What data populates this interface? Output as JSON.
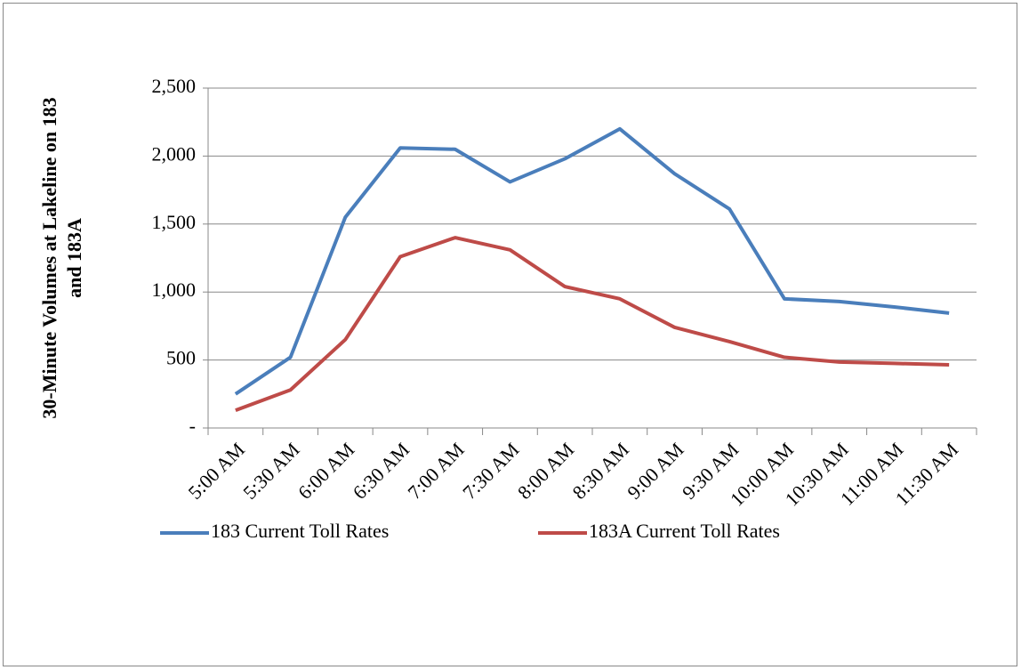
{
  "chart_data": {
    "type": "line",
    "ylabel": [
      "30-Minute Volumes at Lakeline on 183",
      "and 183A"
    ],
    "categories": [
      "5:00 AM",
      "5:30 AM",
      "6:00 AM",
      "6:30 AM",
      "7:00 AM",
      "7:30 AM",
      "8:00 AM",
      "8:30 AM",
      "9:00 AM",
      "9:30 AM",
      "10:00 AM",
      "10:30 AM",
      "11:00 AM",
      "11:30 AM"
    ],
    "series": [
      {
        "name": "183 Current Toll Rates",
        "color": "#4a7ebb",
        "values": [
          250,
          520,
          1550,
          2060,
          2050,
          1810,
          1980,
          2200,
          1870,
          1610,
          950,
          930,
          890,
          845
        ]
      },
      {
        "name": "183A Current Toll Rates",
        "color": "#be4b48",
        "values": [
          130,
          280,
          650,
          1260,
          1400,
          1310,
          1040,
          950,
          740,
          635,
          520,
          485,
          475,
          465
        ]
      }
    ],
    "ylim": [
      0,
      2500
    ],
    "yticks": [
      {
        "value": 0,
        "label": "-"
      },
      500,
      {
        "value": 1000,
        "label": "1,000"
      },
      {
        "value": 1500,
        "label": "1,500"
      },
      {
        "value": 2000,
        "label": "2,000"
      },
      {
        "value": 2500,
        "label": "2,500"
      }
    ],
    "grid": true,
    "legend": "bottom"
  }
}
